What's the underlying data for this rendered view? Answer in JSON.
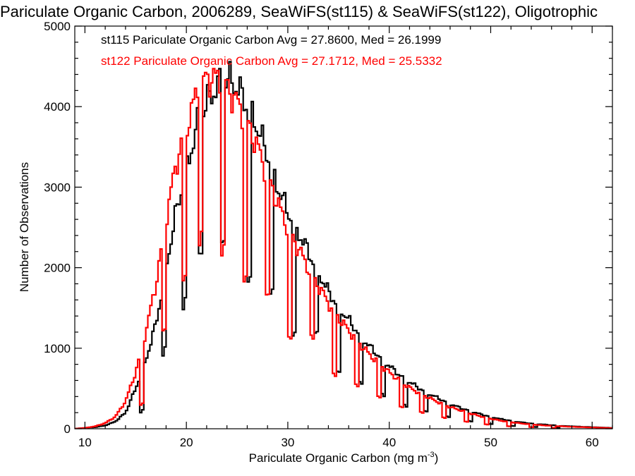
{
  "chart_data": {
    "type": "histogram",
    "title": "Pariculate Organic Carbon, 2006289, SeaWiFS(st115) & SeaWiFS(st122), Oligotrophic",
    "xlabel": "Pariculate Organic Carbon (mg m",
    "xlabel_superscript": "-3",
    "xlabel_suffix": ")",
    "ylabel": "Number of Observations",
    "xlim": [
      9,
      62
    ],
    "ylim": [
      0,
      5000
    ],
    "xticks": [
      10,
      20,
      30,
      40,
      50,
      60
    ],
    "yticks": [
      0,
      1000,
      2000,
      3000,
      4000,
      5000
    ],
    "bin_width": 0.2,
    "series": [
      {
        "name": "st115",
        "color": "#000000",
        "legend": "st115 Pariculate Organic Carbon Avg = 27.8600, Med = 26.1999",
        "x": [
          9,
          10,
          11,
          12,
          13,
          14,
          15,
          16,
          17,
          18,
          19,
          20,
          21,
          22,
          23,
          24,
          25,
          26,
          27,
          28,
          29,
          30,
          31,
          32,
          33,
          34,
          35,
          36,
          37,
          38,
          39,
          40,
          41,
          42,
          43,
          44,
          45,
          46,
          47,
          48,
          49,
          50,
          51,
          52,
          53,
          54,
          55,
          56,
          57,
          58,
          59,
          60,
          61,
          62
        ],
        "values": [
          0,
          10,
          20,
          40,
          90,
          200,
          500,
          850,
          1300,
          2000,
          2700,
          3200,
          3750,
          4050,
          4250,
          4350,
          4250,
          4000,
          3750,
          3400,
          3000,
          2700,
          2450,
          2200,
          1950,
          1700,
          1520,
          1350,
          1180,
          1030,
          900,
          780,
          670,
          580,
          500,
          430,
          370,
          310,
          260,
          220,
          180,
          150,
          120,
          100,
          80,
          65,
          55,
          45,
          35,
          30,
          25,
          20,
          15,
          10
        ],
        "notch_centers": [
          15.6,
          17.8,
          19.8,
          21.4,
          23.6,
          26.2,
          28.4,
          30.6,
          32.8,
          35.0,
          37.2,
          39.4,
          41.6,
          43.6,
          45.8,
          48.0,
          50.0,
          52.2,
          54.4,
          56.6
        ],
        "notch_fraction": [
          0.3,
          0.5,
          0.5,
          0.57,
          0.55,
          0.47,
          0.52,
          0.45,
          0.58,
          0.45,
          0.48,
          0.48,
          0.46,
          0.46,
          0.45,
          0.42,
          0.38,
          0.35,
          0.35,
          0.32
        ]
      },
      {
        "name": "st122",
        "color": "#ff0000",
        "legend": "st122 Pariculate Organic Carbon Avg = 27.1712, Med = 25.5332",
        "x": [
          9,
          10,
          11,
          12,
          13,
          14,
          15,
          16,
          17,
          18,
          19,
          20,
          21,
          22,
          23,
          24,
          25,
          26,
          27,
          28,
          29,
          30,
          31,
          32,
          33,
          34,
          35,
          36,
          37,
          38,
          39,
          40,
          41,
          42,
          43,
          44,
          45,
          46,
          47,
          48,
          49,
          50,
          51,
          52,
          53,
          54,
          55,
          56,
          57,
          58,
          59,
          60,
          61,
          62
        ],
        "values": [
          0,
          10,
          30,
          70,
          150,
          340,
          700,
          1200,
          1800,
          2600,
          3300,
          3750,
          4150,
          4350,
          4350,
          4250,
          4050,
          3800,
          3500,
          3150,
          2800,
          2500,
          2250,
          2000,
          1780,
          1560,
          1380,
          1220,
          1070,
          930,
          810,
          700,
          600,
          510,
          440,
          380,
          320,
          270,
          230,
          190,
          155,
          125,
          100,
          82,
          66,
          54,
          44,
          36,
          30,
          25,
          20,
          16,
          12,
          8
        ],
        "notch_centers": [
          15.6,
          17.8,
          19.8,
          21.4,
          23.6,
          25.8,
          28.0,
          30.2,
          32.4,
          34.6,
          36.8,
          39.0,
          41.2,
          43.2,
          45.4,
          47.6,
          49.6,
          51.8,
          54.0,
          56.2
        ],
        "notch_fraction": [
          0.3,
          0.5,
          0.5,
          0.57,
          0.52,
          0.48,
          0.52,
          0.45,
          0.58,
          0.45,
          0.48,
          0.48,
          0.46,
          0.46,
          0.45,
          0.42,
          0.38,
          0.35,
          0.35,
          0.32
        ]
      }
    ]
  }
}
